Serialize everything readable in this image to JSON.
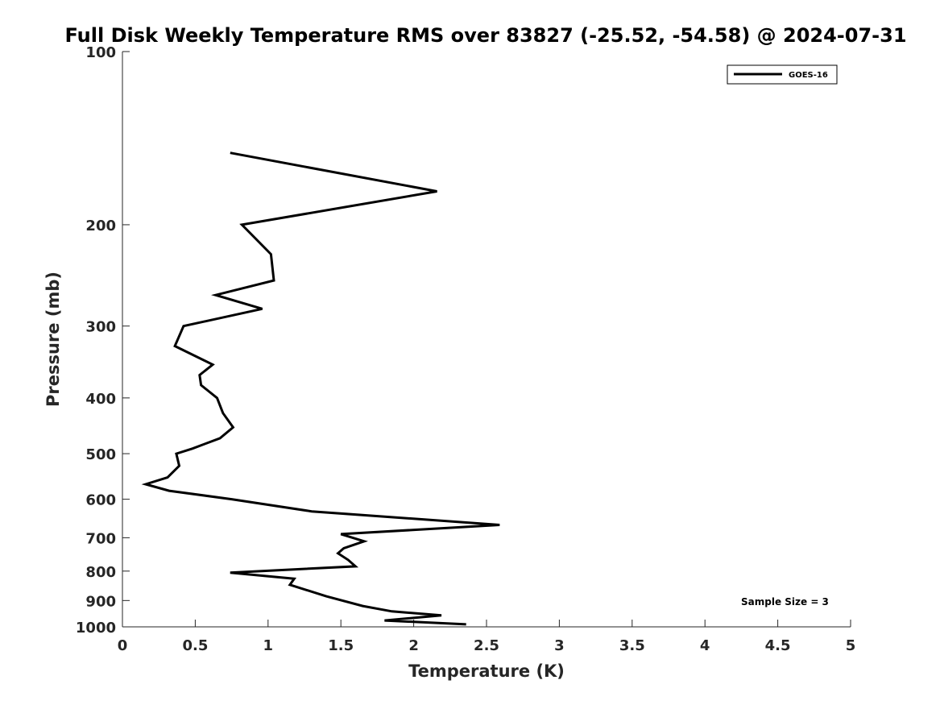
{
  "chart_data": {
    "type": "line",
    "title": "Full Disk Weekly Temperature RMS over 83827 (-25.52, -54.58) @ 2024-07-31",
    "xlabel": "Temperature (K)",
    "ylabel": "Pressure (mb)",
    "xlim": [
      0,
      5
    ],
    "ylim": [
      100,
      1000
    ],
    "y_scale": "log",
    "y_reversed": true,
    "x_ticks": [
      0,
      0.5,
      1,
      1.5,
      2,
      2.5,
      3,
      3.5,
      4,
      4.5,
      5
    ],
    "x_tick_labels": [
      "0",
      "0.5",
      "1",
      "1.5",
      "2",
      "2.5",
      "3",
      "3.5",
      "4",
      "4.5",
      "5"
    ],
    "y_ticks": [
      100,
      200,
      300,
      400,
      500,
      600,
      700,
      800,
      900,
      1000
    ],
    "y_tick_labels": [
      "100",
      "200",
      "300",
      "400",
      "500",
      "600",
      "700",
      "800",
      "900",
      "1000"
    ],
    "grid": false,
    "legend_position": "top-right",
    "annotation": "Sample Size = 3",
    "series": [
      {
        "name": "GOES-16",
        "color": "#000000",
        "points": [
          {
            "x": 0.74,
            "p": 150
          },
          {
            "x": 2.16,
            "p": 175
          },
          {
            "x": 0.82,
            "p": 200
          },
          {
            "x": 1.02,
            "p": 225
          },
          {
            "x": 1.04,
            "p": 250
          },
          {
            "x": 0.64,
            "p": 265
          },
          {
            "x": 0.96,
            "p": 280
          },
          {
            "x": 0.42,
            "p": 300
          },
          {
            "x": 0.36,
            "p": 325
          },
          {
            "x": 0.62,
            "p": 350
          },
          {
            "x": 0.53,
            "p": 365
          },
          {
            "x": 0.54,
            "p": 380
          },
          {
            "x": 0.65,
            "p": 400
          },
          {
            "x": 0.69,
            "p": 425
          },
          {
            "x": 0.76,
            "p": 450
          },
          {
            "x": 0.67,
            "p": 470
          },
          {
            "x": 0.48,
            "p": 490
          },
          {
            "x": 0.37,
            "p": 500
          },
          {
            "x": 0.39,
            "p": 525
          },
          {
            "x": 0.31,
            "p": 550
          },
          {
            "x": 0.16,
            "p": 565
          },
          {
            "x": 0.32,
            "p": 580
          },
          {
            "x": 0.75,
            "p": 600
          },
          {
            "x": 1.3,
            "p": 630
          },
          {
            "x": 2.59,
            "p": 665
          },
          {
            "x": 1.5,
            "p": 690
          },
          {
            "x": 1.66,
            "p": 710
          },
          {
            "x": 1.52,
            "p": 730
          },
          {
            "x": 1.48,
            "p": 745
          },
          {
            "x": 1.55,
            "p": 765
          },
          {
            "x": 1.6,
            "p": 785
          },
          {
            "x": 0.74,
            "p": 805
          },
          {
            "x": 1.18,
            "p": 825
          },
          {
            "x": 1.15,
            "p": 845
          },
          {
            "x": 1.4,
            "p": 885
          },
          {
            "x": 1.65,
            "p": 920
          },
          {
            "x": 1.85,
            "p": 940
          },
          {
            "x": 2.19,
            "p": 955
          },
          {
            "x": 1.8,
            "p": 975
          },
          {
            "x": 2.36,
            "p": 990
          }
        ]
      }
    ]
  }
}
